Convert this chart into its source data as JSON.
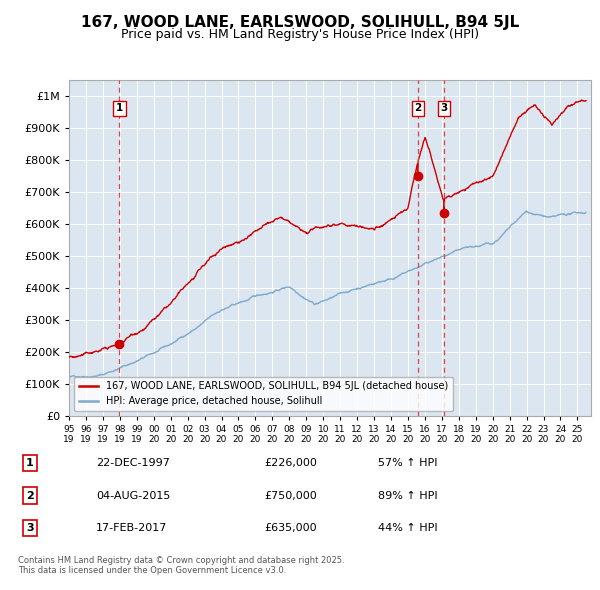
{
  "title": "167, WOOD LANE, EARLSWOOD, SOLIHULL, B94 5JL",
  "subtitle": "Price paid vs. HM Land Registry's House Price Index (HPI)",
  "title_fontsize": 11,
  "subtitle_fontsize": 9,
  "background_color": "#ffffff",
  "plot_bg_color": "#dce6f1",
  "red_line_color": "#cc0000",
  "blue_line_color": "#7faacc",
  "marker_color": "#cc0000",
  "dashed_line_color": "#dd4444",
  "ylim": [
    0,
    1050000
  ],
  "yticks": [
    0,
    100000,
    200000,
    300000,
    400000,
    500000,
    600000,
    700000,
    800000,
    900000,
    1000000
  ],
  "ytick_labels": [
    "£0",
    "£100K",
    "£200K",
    "£300K",
    "£400K",
    "£500K",
    "£600K",
    "£700K",
    "£800K",
    "£900K",
    "£1M"
  ],
  "legend_red_label": "167, WOOD LANE, EARLSWOOD, SOLIHULL, B94 5JL (detached house)",
  "legend_blue_label": "HPI: Average price, detached house, Solihull",
  "sale1_label": "1",
  "sale1_date": "22-DEC-1997",
  "sale1_price": "£226,000",
  "sale1_hpi": "57% ↑ HPI",
  "sale1_year": 1997.97,
  "sale1_value": 226000,
  "sale2_label": "2",
  "sale2_date": "04-AUG-2015",
  "sale2_price": "£750,000",
  "sale2_hpi": "89% ↑ HPI",
  "sale2_year": 2015.59,
  "sale2_value": 750000,
  "sale3_label": "3",
  "sale3_date": "17-FEB-2017",
  "sale3_price": "£635,000",
  "sale3_hpi": "44% ↑ HPI",
  "sale3_year": 2017.12,
  "sale3_value": 635000,
  "footnote": "Contains HM Land Registry data © Crown copyright and database right 2025.\nThis data is licensed under the Open Government Licence v3.0."
}
